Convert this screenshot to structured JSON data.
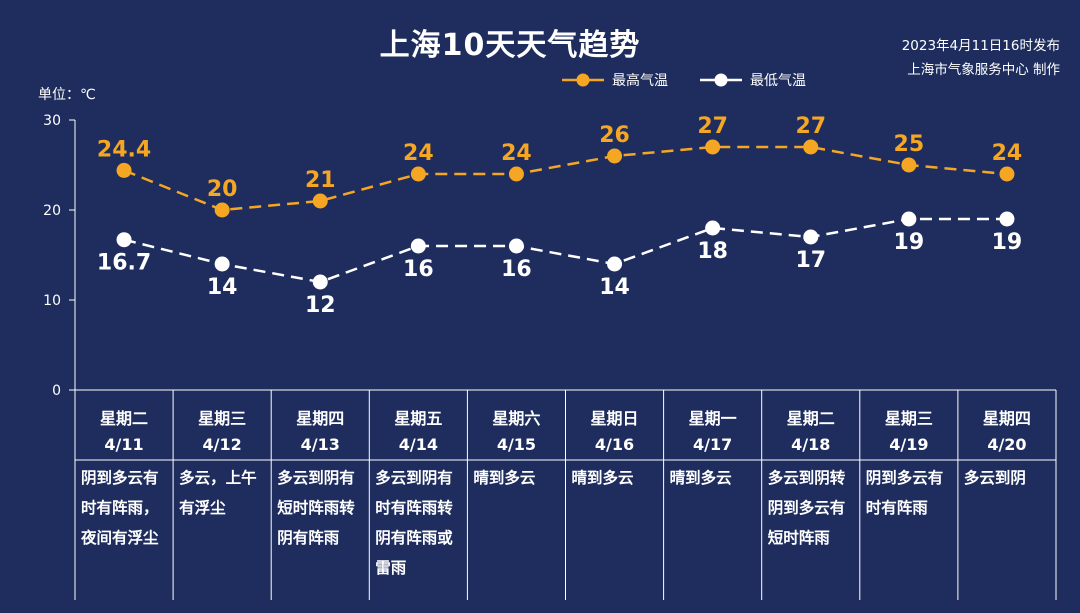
{
  "title": "上海10天天气趋势",
  "publish": {
    "time": "2023年4月11日16时发布",
    "source": "上海市气象服务中心 制作"
  },
  "unit_label": "单位：℃",
  "colors": {
    "background": "#1e2d5e",
    "high": "#f5a623",
    "low": "#ffffff",
    "axis": "#ffffff"
  },
  "chart_data": {
    "type": "line",
    "title": "上海10天天气趋势",
    "ylabel": "单位：℃",
    "ylim": [
      0,
      30
    ],
    "yticks": [
      0,
      10,
      20,
      30
    ],
    "legend_position": "top-right",
    "categories": [
      "4/11",
      "4/12",
      "4/13",
      "4/14",
      "4/15",
      "4/16",
      "4/17",
      "4/18",
      "4/19",
      "4/20"
    ],
    "weekdays": [
      "星期二",
      "星期三",
      "星期四",
      "星期五",
      "星期六",
      "星期日",
      "星期一",
      "星期二",
      "星期三",
      "星期四"
    ],
    "descriptions": [
      "阴到多云有时有阵雨，夜间有浮尘",
      "多云，上午有浮尘",
      "多云到阴有短时阵雨转阴有阵雨",
      "多云到阴有时有阵雨转阴有阵雨或雷雨",
      "晴到多云",
      "晴到多云",
      "晴到多云",
      "多云到阴转阴到多云有短时阵雨",
      "阴到多云有时有阵雨",
      "多云到阴"
    ],
    "series": [
      {
        "name": "最高气温",
        "values": [
          24.4,
          20,
          21,
          24,
          24,
          26,
          27,
          27,
          25,
          24
        ],
        "labels": [
          "24.4",
          "20",
          "21",
          "24",
          "24",
          "26",
          "27",
          "27",
          "25",
          "24"
        ]
      },
      {
        "name": "最低气温",
        "values": [
          16.7,
          14,
          12,
          16,
          16,
          14,
          18,
          17,
          19,
          19
        ],
        "labels": [
          "16.7",
          "14",
          "12",
          "16",
          "16",
          "14",
          "18",
          "17",
          "19",
          "19"
        ]
      }
    ]
  }
}
